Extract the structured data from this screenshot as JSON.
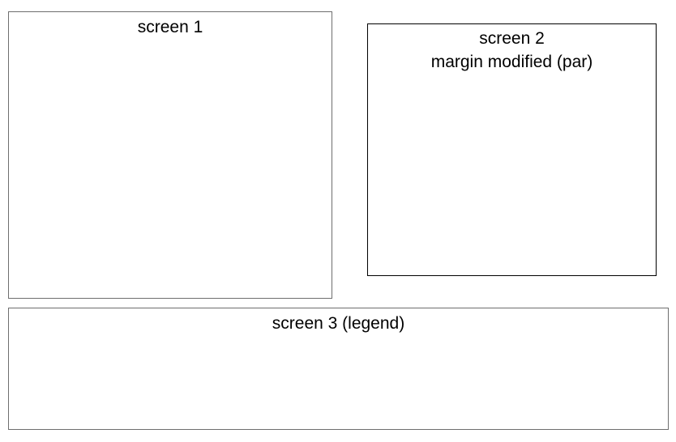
{
  "screens": {
    "screen1": {
      "title": "screen 1"
    },
    "screen2": {
      "title": "screen 2",
      "subtitle": "margin modified (par)"
    },
    "screen3": {
      "title": "screen 3 (legend)"
    }
  }
}
